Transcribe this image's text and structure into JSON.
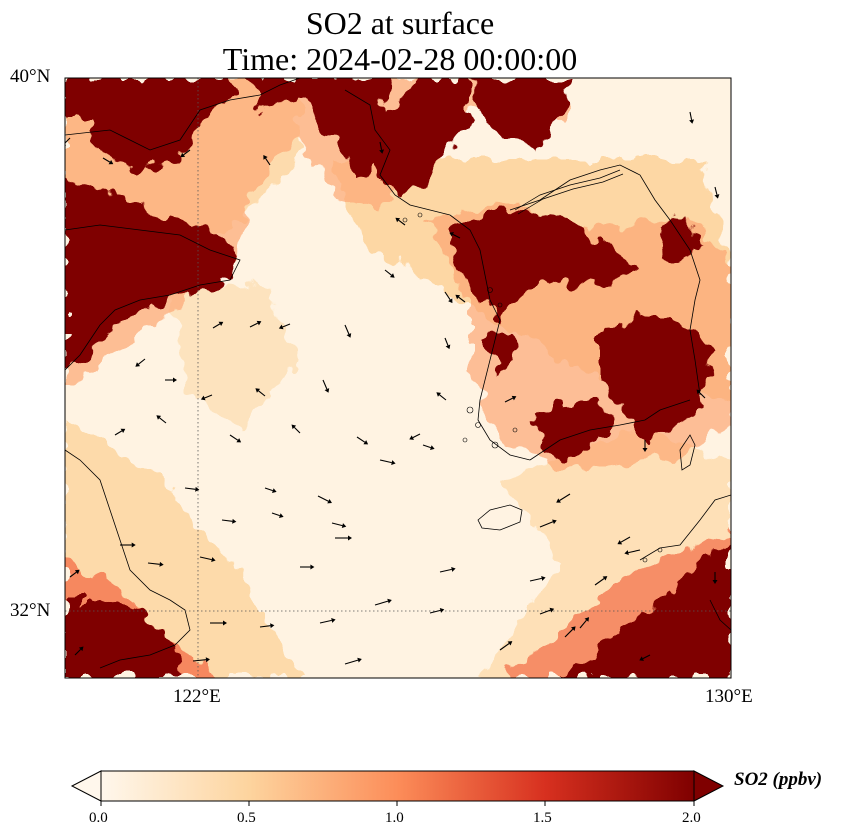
{
  "title": {
    "line1": "SO2 at surface",
    "line2": "Time: 2024-02-28 00:00:00"
  },
  "axes": {
    "lat_ticks": [
      "40°N",
      "32°N"
    ],
    "lon_ticks": [
      "122°E",
      "130°E"
    ]
  },
  "colorbar": {
    "label": "SO2 (ppbv)",
    "ticks": [
      "0.0",
      "0.5",
      "1.0",
      "1.5",
      "2.0"
    ],
    "colormap": "OrRd",
    "colors": [
      "#fff7ec",
      "#fdd49e",
      "#fc8d59",
      "#d7301f",
      "#7f0000"
    ],
    "extend": "both"
  },
  "map_data": {
    "projection": "PlateCarree",
    "extent_lon": [
      120,
      130
    ],
    "extent_lat": [
      31,
      40
    ],
    "gridlines": {
      "lon": [
        122
      ],
      "lat": [
        32
      ],
      "style": "dotted"
    },
    "field": "SO2 concentration",
    "high_regions": [
      "northwest corner (Hebei / Beijing)",
      "Shandong peninsula",
      "Liaodong peninsula",
      "northern Korean peninsula",
      "central and southwestern Korea",
      "southeast corner (Kyushu)",
      "southwest corner (Jiangsu / Shanghai)"
    ],
    "wind_vectors": true
  }
}
